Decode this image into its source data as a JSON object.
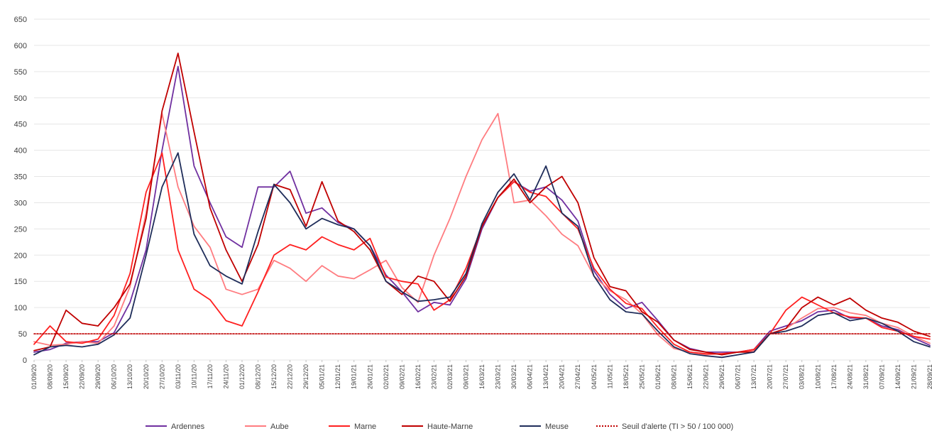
{
  "chart_data": {
    "type": "line",
    "title": "",
    "xlabel": "",
    "ylabel": "",
    "ylim": [
      0,
      650
    ],
    "yticks": [
      0,
      50,
      100,
      150,
      200,
      250,
      300,
      350,
      400,
      450,
      500,
      550,
      600,
      650
    ],
    "grid": "horizontal",
    "legend_position": "bottom",
    "x_labels": [
      "01/09/20",
      "08/09/20",
      "15/09/20",
      "22/09/20",
      "29/09/20",
      "06/10/20",
      "13/10/20",
      "20/10/20",
      "27/10/20",
      "03/11/20",
      "10/11/20",
      "17/11/20",
      "24/11/20",
      "01/12/20",
      "08/12/20",
      "15/12/20",
      "22/12/20",
      "29/12/20",
      "05/01/21",
      "12/01/21",
      "19/01/21",
      "26/01/21",
      "02/02/21",
      "09/02/21",
      "16/02/21",
      "23/02/21",
      "02/03/21",
      "09/03/21",
      "16/03/21",
      "23/03/21",
      "30/03/21",
      "06/04/21",
      "13/04/21",
      "20/04/21",
      "27/04/21",
      "04/05/21",
      "11/05/21",
      "18/05/21",
      "25/05/21",
      "01/06/21",
      "08/06/21",
      "15/06/21",
      "22/06/21",
      "29/06/21",
      "06/07/21",
      "13/07/21",
      "20/07/21",
      "27/07/21",
      "03/08/21",
      "10/08/21",
      "17/08/21",
      "24/08/21",
      "31/08/21",
      "07/09/21",
      "14/09/21",
      "21/09/21",
      "28/09/21"
    ],
    "series": [
      {
        "name": "Ardennes",
        "color": "#7030a0",
        "dash": "solid",
        "values": [
          15,
          20,
          32,
          35,
          35,
          52,
          110,
          210,
          400,
          560,
          370,
          300,
          235,
          215,
          330,
          330,
          360,
          280,
          290,
          262,
          250,
          218,
          162,
          130,
          92,
          110,
          105,
          155,
          250,
          310,
          340,
          322,
          330,
          305,
          265,
          170,
          125,
          98,
          110,
          75,
          38,
          22,
          15,
          15,
          15,
          20,
          55,
          65,
          75,
          92,
          95,
          80,
          80,
          65,
          58,
          42,
          28
        ]
      },
      {
        "name": "Aube",
        "color": "#ff7c80",
        "dash": "solid",
        "values": [
          35,
          28,
          30,
          35,
          32,
          65,
          140,
          280,
          470,
          330,
          255,
          215,
          135,
          125,
          135,
          190,
          175,
          150,
          180,
          160,
          155,
          172,
          190,
          138,
          110,
          200,
          270,
          350,
          420,
          470,
          300,
          305,
          275,
          240,
          218,
          160,
          132,
          115,
          88,
          48,
          22,
          15,
          10,
          12,
          15,
          18,
          50,
          60,
          80,
          98,
          100,
          90,
          85,
          70,
          62,
          45,
          32
        ]
      },
      {
        "name": "Marne",
        "color": "#ff2020",
        "dash": "solid",
        "values": [
          30,
          65,
          35,
          32,
          40,
          85,
          165,
          320,
          395,
          210,
          135,
          115,
          75,
          65,
          130,
          200,
          220,
          210,
          235,
          220,
          210,
          232,
          158,
          150,
          145,
          95,
          115,
          175,
          255,
          310,
          340,
          320,
          312,
          280,
          250,
          175,
          135,
          108,
          98,
          62,
          30,
          15,
          12,
          12,
          15,
          20,
          50,
          95,
          120,
          105,
          90,
          82,
          80,
          62,
          55,
          45,
          40
        ]
      },
      {
        "name": "Haute-Marne",
        "color": "#c00000",
        "dash": "solid",
        "values": [
          18,
          25,
          95,
          70,
          65,
          100,
          145,
          270,
          475,
          585,
          435,
          290,
          210,
          150,
          220,
          335,
          325,
          255,
          340,
          265,
          245,
          210,
          150,
          125,
          160,
          150,
          112,
          160,
          255,
          310,
          345,
          300,
          330,
          350,
          300,
          195,
          140,
          132,
          92,
          72,
          38,
          20,
          15,
          10,
          15,
          15,
          50,
          60,
          100,
          120,
          105,
          118,
          95,
          80,
          72,
          55,
          45
        ]
      },
      {
        "name": "Meuse",
        "color": "#1f2d5a",
        "dash": "solid",
        "values": [
          10,
          25,
          28,
          25,
          30,
          48,
          80,
          200,
          330,
          395,
          240,
          180,
          160,
          145,
          245,
          335,
          300,
          250,
          270,
          258,
          250,
          218,
          150,
          130,
          112,
          115,
          120,
          165,
          260,
          320,
          355,
          305,
          370,
          280,
          255,
          160,
          115,
          92,
          88,
          55,
          25,
          12,
          8,
          5,
          10,
          15,
          50,
          55,
          65,
          85,
          90,
          75,
          80,
          70,
          55,
          35,
          25
        ]
      },
      {
        "name": "Seuil d'alerte (TI > 50 / 100 000)",
        "color": "#c00000",
        "dash": "dotted",
        "values": [
          50,
          50,
          50,
          50,
          50,
          50,
          50,
          50,
          50,
          50,
          50,
          50,
          50,
          50,
          50,
          50,
          50,
          50,
          50,
          50,
          50,
          50,
          50,
          50,
          50,
          50,
          50,
          50,
          50,
          50,
          50,
          50,
          50,
          50,
          50,
          50,
          50,
          50,
          50,
          50,
          50,
          50,
          50,
          50,
          50,
          50,
          50,
          50,
          50,
          50,
          50,
          50,
          50,
          50,
          50,
          50,
          50
        ]
      }
    ]
  }
}
